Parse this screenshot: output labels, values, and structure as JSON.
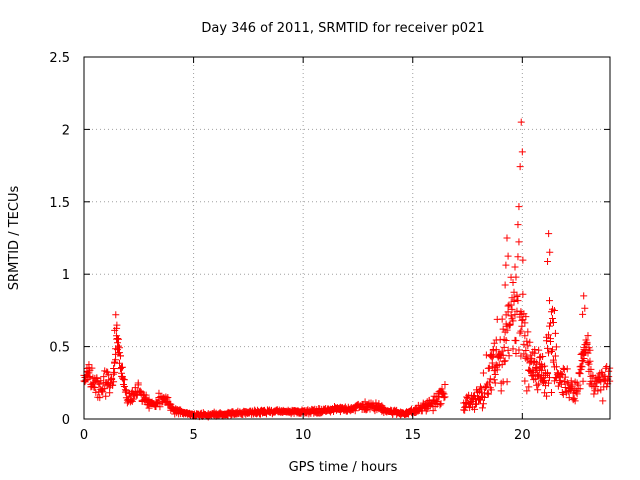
{
  "chart_data": {
    "type": "scatter",
    "title": "Day 346 of 2011, SRMTID for receiver p021",
    "xlabel": "GPS time / hours",
    "ylabel": "SRMTID / TECUs",
    "xlim": [
      0,
      24
    ],
    "ylim": [
      0,
      2.5
    ],
    "x_ticks": [
      0,
      5,
      10,
      15,
      20
    ],
    "x_tick_labels": [
      "0",
      "5",
      "10",
      "15",
      "20"
    ],
    "y_ticks": [
      0,
      0.5,
      1,
      1.5,
      2,
      2.5
    ],
    "y_tick_labels": [
      "0",
      "0.5",
      "1",
      "1.5",
      "2",
      "2.5"
    ],
    "grid": true,
    "marker": "+",
    "color": "#ff0000",
    "series": [
      {
        "name": "SRMTID",
        "profile_x": [
          0.0,
          0.2,
          0.5,
          0.8,
          1.0,
          1.3,
          1.5,
          1.7,
          2.0,
          2.5,
          2.9,
          3.2,
          3.6,
          4.0,
          4.5,
          5.0,
          6.0,
          7.0,
          8.0,
          9.0,
          10.0,
          11.0,
          12.0,
          12.8,
          13.5,
          14.0,
          14.5,
          15.0,
          15.5,
          16.0,
          16.5,
          16.6,
          17.3,
          17.7,
          18.0,
          18.3,
          18.6,
          18.9,
          19.2,
          19.5,
          19.7,
          19.9,
          20.1,
          20.4,
          20.7,
          21.0,
          21.3,
          21.6,
          22.0,
          22.5,
          22.9,
          23.2,
          23.6,
          24.0
        ],
        "profile_mean": [
          0.28,
          0.32,
          0.25,
          0.18,
          0.28,
          0.25,
          0.55,
          0.35,
          0.15,
          0.18,
          0.12,
          0.1,
          0.16,
          0.07,
          0.04,
          0.03,
          0.03,
          0.04,
          0.05,
          0.05,
          0.05,
          0.06,
          0.07,
          0.09,
          0.08,
          0.05,
          0.04,
          0.05,
          0.08,
          0.12,
          0.18,
          null,
          0.1,
          0.12,
          0.15,
          0.2,
          0.35,
          0.4,
          0.55,
          0.75,
          0.9,
          1.05,
          0.5,
          0.35,
          0.35,
          0.3,
          0.6,
          0.3,
          0.25,
          0.2,
          0.55,
          0.25,
          0.25,
          0.3
        ],
        "profile_spread": [
          0.12,
          0.15,
          0.12,
          0.1,
          0.15,
          0.12,
          0.12,
          0.15,
          0.07,
          0.1,
          0.06,
          0.06,
          0.08,
          0.04,
          0.02,
          0.02,
          0.02,
          0.02,
          0.02,
          0.02,
          0.02,
          0.03,
          0.03,
          0.05,
          0.04,
          0.03,
          0.02,
          0.03,
          0.05,
          0.07,
          0.12,
          null,
          0.07,
          0.07,
          0.1,
          0.3,
          0.35,
          0.35,
          0.45,
          0.5,
          0.7,
          0.95,
          0.35,
          0.2,
          0.2,
          0.2,
          0.6,
          0.2,
          0.15,
          0.12,
          0.25,
          0.15,
          0.15,
          0.2
        ],
        "data_gaps_hours": [
          [
            16.6,
            17.2
          ]
        ],
        "peak": {
          "x": 19.95,
          "y": 2.05
        },
        "secondary_peaks": [
          {
            "x": 1.45,
            "y": 0.72
          },
          {
            "x": 19.3,
            "y": 1.25
          },
          {
            "x": 21.2,
            "y": 1.28
          },
          {
            "x": 22.8,
            "y": 0.85
          }
        ]
      }
    ]
  }
}
